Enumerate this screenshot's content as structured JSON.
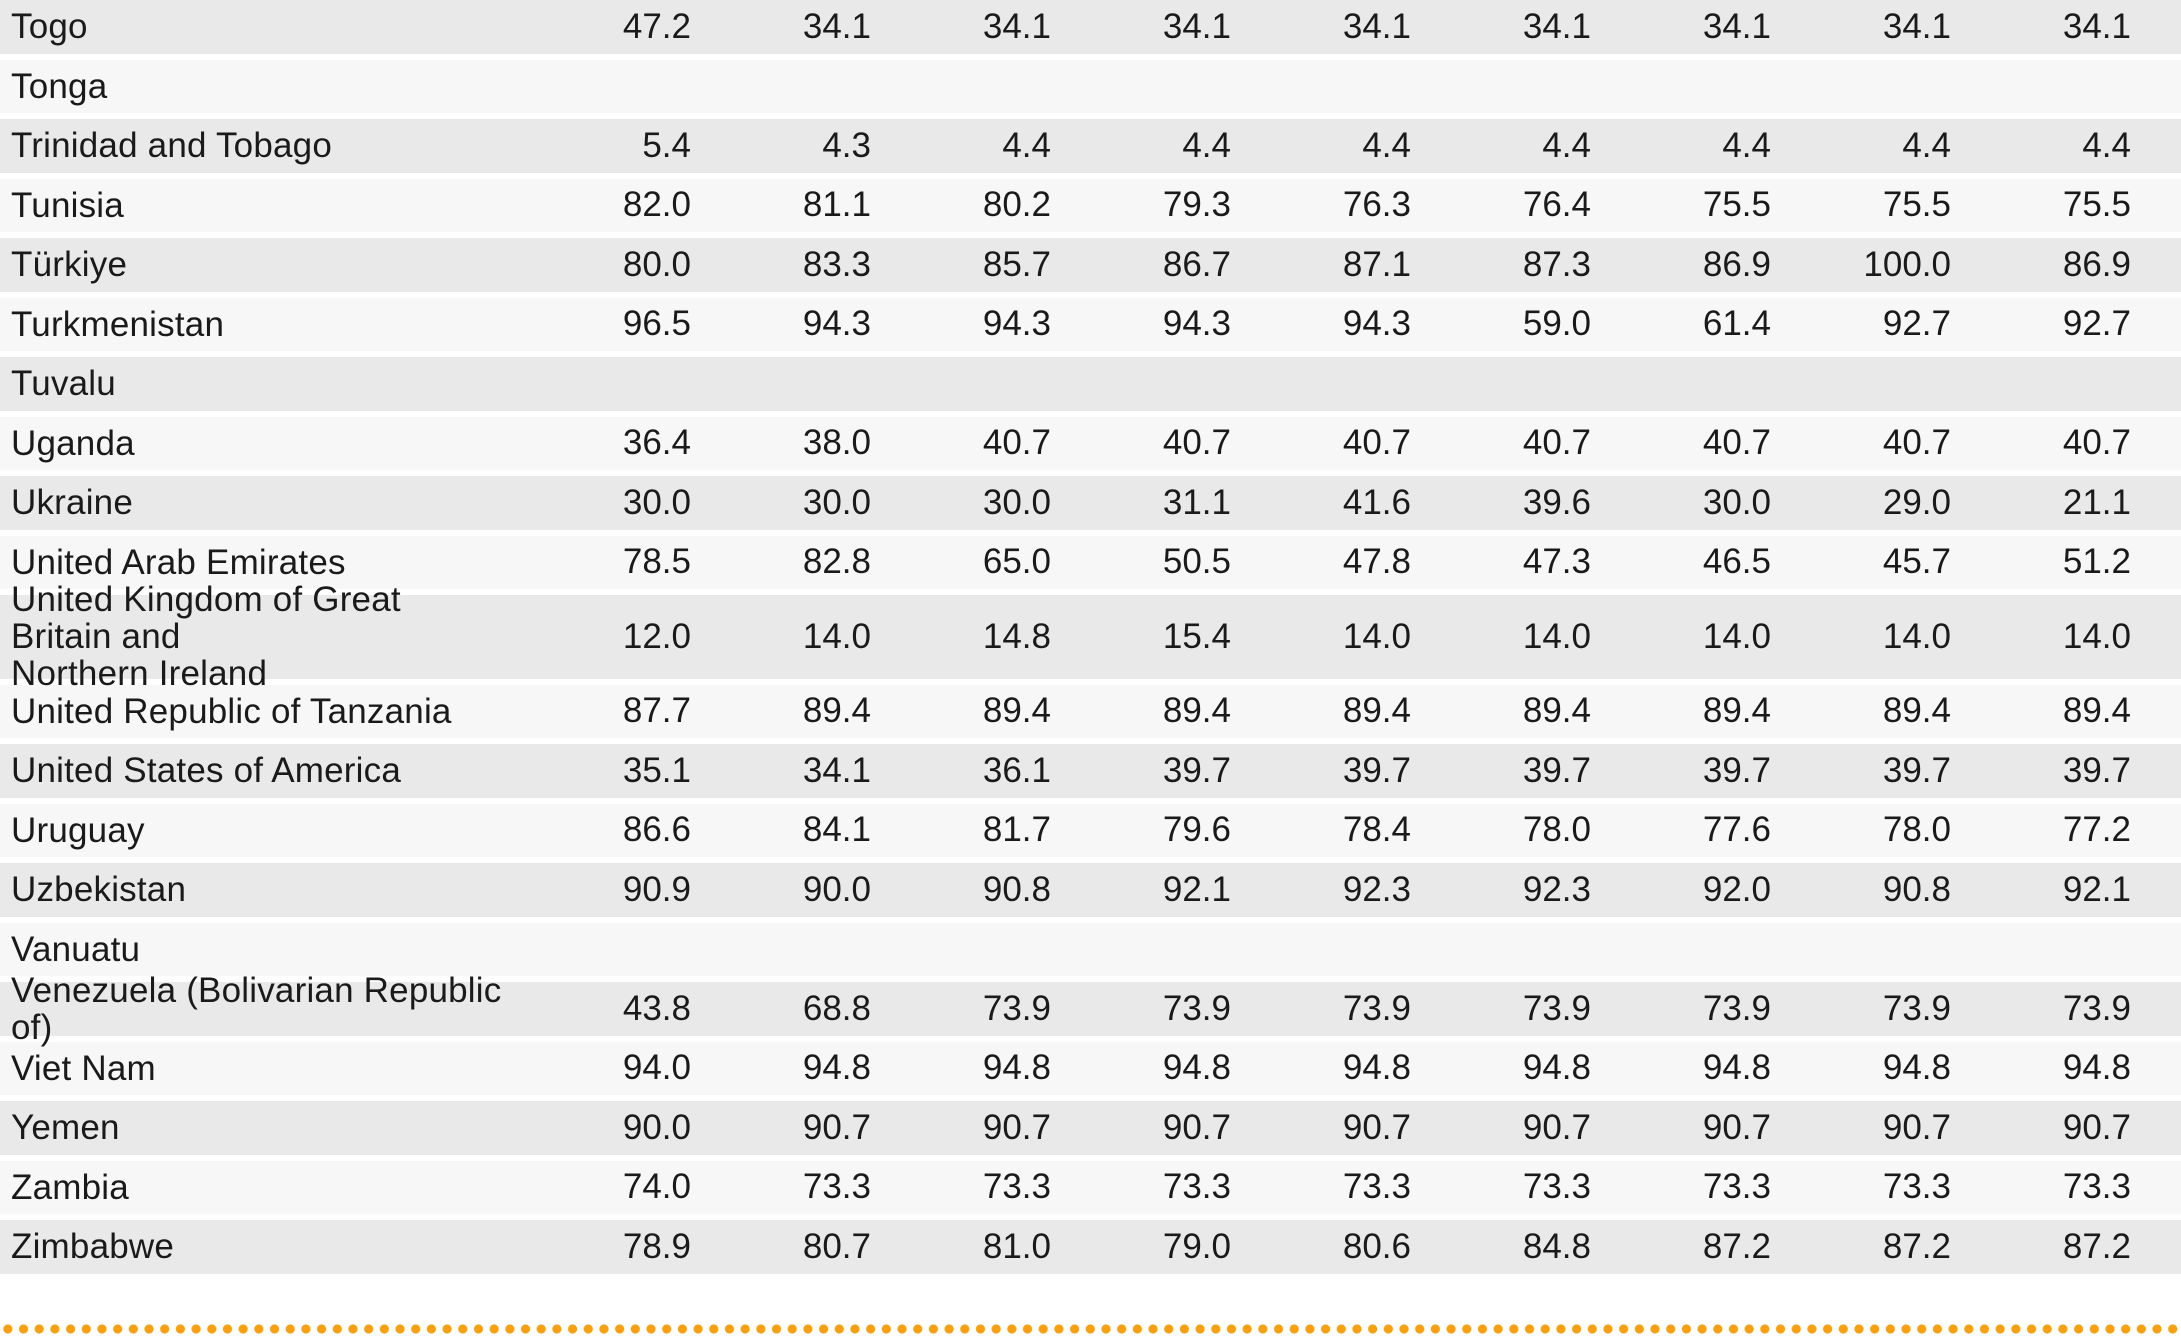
{
  "style": {
    "row_gray": "#e9e9e9",
    "row_light": "#f7f7f7",
    "text_color": "#1a1a1a",
    "dotted_line_color": "#f7a011"
  },
  "table": {
    "rows": [
      {
        "country": "Togo",
        "values": [
          "47.2",
          "34.1",
          "34.1",
          "34.1",
          "34.1",
          "34.1",
          "34.1",
          "34.1",
          "34.1"
        ]
      },
      {
        "country": "Tonga",
        "values": [
          "",
          "",
          "",
          "",
          "",
          "",
          "",
          "",
          ""
        ]
      },
      {
        "country": "Trinidad and Tobago",
        "values": [
          "5.4",
          "4.3",
          "4.4",
          "4.4",
          "4.4",
          "4.4",
          "4.4",
          "4.4",
          "4.4"
        ]
      },
      {
        "country": "Tunisia",
        "values": [
          "82.0",
          "81.1",
          "80.2",
          "79.3",
          "76.3",
          "76.4",
          "75.5",
          "75.5",
          "75.5"
        ]
      },
      {
        "country": "Türkiye",
        "values": [
          "80.0",
          "83.3",
          "85.7",
          "86.7",
          "87.1",
          "87.3",
          "86.9",
          "100.0",
          "86.9"
        ]
      },
      {
        "country": "Turkmenistan",
        "values": [
          "96.5",
          "94.3",
          "94.3",
          "94.3",
          "94.3",
          "59.0",
          "61.4",
          "92.7",
          "92.7"
        ]
      },
      {
        "country": "Tuvalu",
        "values": [
          "",
          "",
          "",
          "",
          "",
          "",
          "",
          "",
          ""
        ]
      },
      {
        "country": "Uganda",
        "values": [
          "36.4",
          "38.0",
          "40.7",
          "40.7",
          "40.7",
          "40.7",
          "40.7",
          "40.7",
          "40.7"
        ]
      },
      {
        "country": "Ukraine",
        "values": [
          "30.0",
          "30.0",
          "30.0",
          "31.1",
          "41.6",
          "39.6",
          "30.0",
          "29.0",
          "21.1"
        ]
      },
      {
        "country": "United Arab Emirates",
        "values": [
          "78.5",
          "82.8",
          "65.0",
          "50.5",
          "47.8",
          "47.3",
          "46.5",
          "45.7",
          "51.2"
        ]
      },
      {
        "country": "United Kingdom of Great Britain and\nNorthern Ireland",
        "values": [
          "12.0",
          "14.0",
          "14.8",
          "15.4",
          "14.0",
          "14.0",
          "14.0",
          "14.0",
          "14.0"
        ]
      },
      {
        "country": "United Republic of Tanzania",
        "values": [
          "87.7",
          "89.4",
          "89.4",
          "89.4",
          "89.4",
          "89.4",
          "89.4",
          "89.4",
          "89.4"
        ]
      },
      {
        "country": "United States of America",
        "values": [
          "35.1",
          "34.1",
          "36.1",
          "39.7",
          "39.7",
          "39.7",
          "39.7",
          "39.7",
          "39.7"
        ]
      },
      {
        "country": "Uruguay",
        "values": [
          "86.6",
          "84.1",
          "81.7",
          "79.6",
          "78.4",
          "78.0",
          "77.6",
          "78.0",
          "77.2"
        ]
      },
      {
        "country": "Uzbekistan",
        "values": [
          "90.9",
          "90.0",
          "90.8",
          "92.1",
          "92.3",
          "92.3",
          "92.0",
          "90.8",
          "92.1"
        ]
      },
      {
        "country": "Vanuatu",
        "values": [
          "",
          "",
          "",
          "",
          "",
          "",
          "",
          "",
          ""
        ]
      },
      {
        "country": "Venezuela (Bolivarian Republic of)",
        "values": [
          "43.8",
          "68.8",
          "73.9",
          "73.9",
          "73.9",
          "73.9",
          "73.9",
          "73.9",
          "73.9"
        ]
      },
      {
        "country": "Viet Nam",
        "values": [
          "94.0",
          "94.8",
          "94.8",
          "94.8",
          "94.8",
          "94.8",
          "94.8",
          "94.8",
          "94.8"
        ]
      },
      {
        "country": "Yemen",
        "values": [
          "90.0",
          "90.7",
          "90.7",
          "90.7",
          "90.7",
          "90.7",
          "90.7",
          "90.7",
          "90.7"
        ]
      },
      {
        "country": "Zambia",
        "values": [
          "74.0",
          "73.3",
          "73.3",
          "73.3",
          "73.3",
          "73.3",
          "73.3",
          "73.3",
          "73.3"
        ]
      },
      {
        "country": "Zimbabwe",
        "values": [
          "78.9",
          "80.7",
          "81.0",
          "79.0",
          "80.6",
          "84.8",
          "87.2",
          "87.2",
          "87.2"
        ]
      }
    ]
  }
}
